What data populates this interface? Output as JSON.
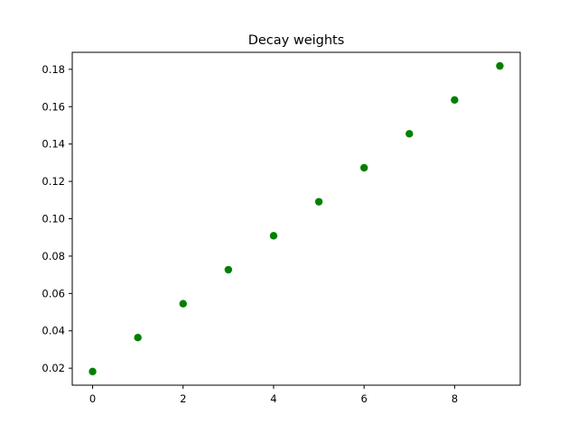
{
  "chart_data": {
    "type": "scatter",
    "title": "Decay weights",
    "xlabel": "",
    "ylabel": "",
    "xlim": [
      -0.45,
      9.45
    ],
    "ylim": [
      0.0109,
      0.1891
    ],
    "xticks": [
      0,
      2,
      4,
      6,
      8
    ],
    "xtick_labels": [
      "0",
      "2",
      "4",
      "6",
      "8"
    ],
    "yticks": [
      0.02,
      0.04,
      0.06,
      0.08,
      0.1,
      0.12,
      0.14,
      0.16,
      0.18
    ],
    "ytick_labels": [
      "0.02",
      "0.04",
      "0.06",
      "0.08",
      "0.10",
      "0.12",
      "0.14",
      "0.16",
      "0.18"
    ],
    "grid": false,
    "series": [
      {
        "color": "#008000",
        "x": [
          0,
          1,
          2,
          3,
          4,
          5,
          6,
          7,
          8,
          9
        ],
        "y": [
          0.0182,
          0.0364,
          0.0545,
          0.0727,
          0.0909,
          0.1091,
          0.1273,
          0.1455,
          0.1636,
          0.1818
        ]
      }
    ]
  }
}
